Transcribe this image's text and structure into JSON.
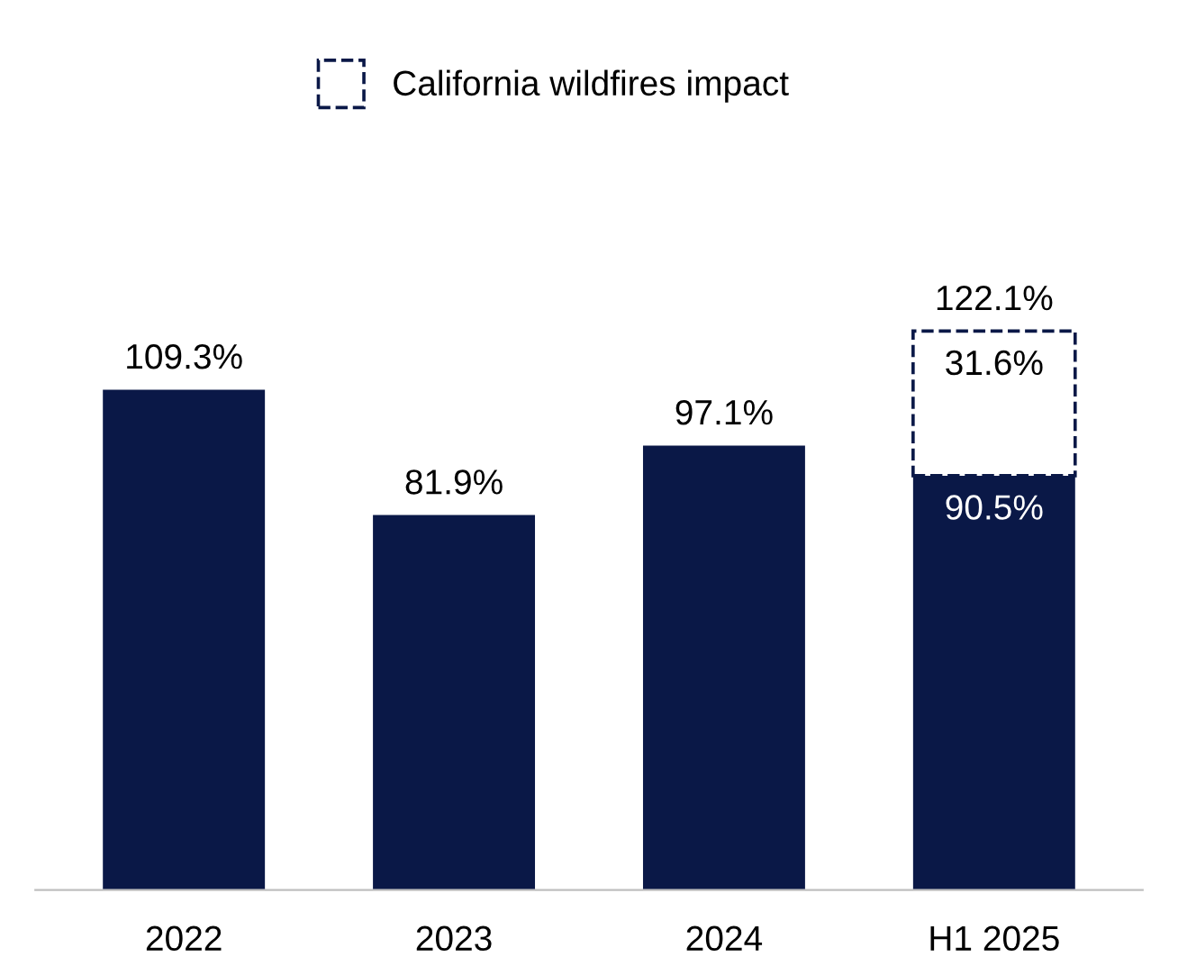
{
  "chart_data": {
    "type": "bar",
    "stacked": true,
    "categories": [
      "2022",
      "2023",
      "2024",
      "H1 2025"
    ],
    "series": [
      {
        "color": "#0a1847",
        "values": [
          109.3,
          81.9,
          97.1,
          90.5
        ],
        "value_labels": [
          "109.3%",
          "81.9%",
          "97.1%",
          "90.5%"
        ]
      },
      {
        "name": "California wildfires impact",
        "color": "#0a1847",
        "line_style": "dashed",
        "values": [
          null,
          null,
          null,
          31.6
        ],
        "value_labels": [
          null,
          null,
          null,
          "31.6%"
        ]
      }
    ],
    "totals": [
      null,
      null,
      null,
      "122.1%"
    ],
    "legend": "top",
    "grid": false
  }
}
